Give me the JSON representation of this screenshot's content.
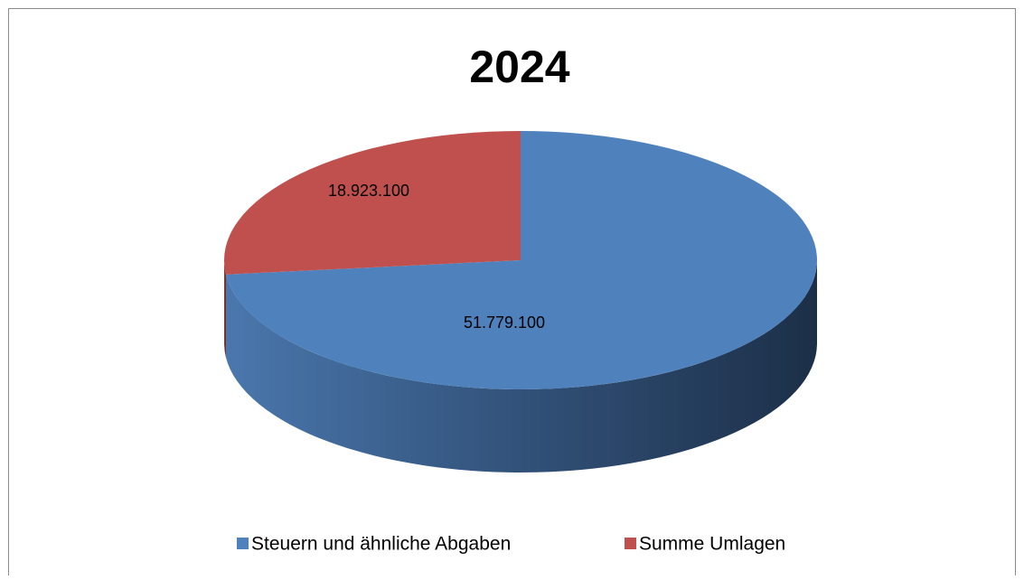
{
  "chart_data": {
    "type": "pie",
    "title": "2024",
    "categories": [
      "Steuern und ähnliche Abgaben",
      "Summe Umlagen"
    ],
    "values": [
      51779100,
      18923100
    ],
    "value_labels": [
      "51.779.100",
      "18.923.100"
    ],
    "colors": [
      "#4f81bd",
      "#c0504d"
    ],
    "legend": "bottom"
  }
}
